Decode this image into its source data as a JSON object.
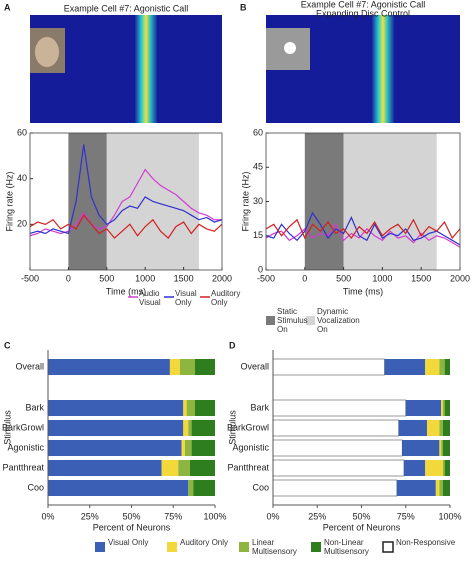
{
  "chart_data": [
    {
      "type": "line",
      "panel_label": "A",
      "title": "Example Cell #7: Agonistic Call",
      "xlabel": "Time (ms)",
      "ylabel": "Firing rate (Hz)",
      "x": [
        -500,
        -400,
        -300,
        -200,
        -100,
        0,
        100,
        200,
        300,
        400,
        500,
        600,
        700,
        800,
        900,
        1000,
        1100,
        1200,
        1300,
        1400,
        1500,
        1600,
        1700,
        1800,
        1900,
        2000
      ],
      "xlim": [
        -500,
        2000
      ],
      "xticks": [
        -500,
        0,
        500,
        1000,
        1500,
        2000
      ],
      "ylim": [
        0,
        60
      ],
      "yticks": [
        20,
        40,
        60
      ],
      "shaded_regions": [
        {
          "x": [
            0,
            500
          ],
          "color": "#7a7a7a"
        },
        {
          "x": [
            500,
            1700
          ],
          "color": "#d4d4d4"
        }
      ],
      "series": [
        {
          "name": "Audio Visual",
          "color": "#d43bd4",
          "values": [
            15,
            16,
            18,
            17,
            16,
            17,
            20,
            25,
            20,
            18,
            19,
            24,
            30,
            32,
            38,
            44,
            40,
            37,
            35,
            33,
            30,
            27,
            25,
            24,
            22,
            22
          ]
        },
        {
          "name": "Visual Only",
          "color": "#3030d0",
          "values": [
            16,
            17,
            16,
            18,
            17,
            16,
            30,
            55,
            32,
            24,
            20,
            22,
            26,
            28,
            27,
            32,
            30,
            29,
            28,
            27,
            26,
            24,
            22,
            23,
            21,
            22
          ]
        },
        {
          "name": "Auditory Only",
          "color": "#d42020",
          "values": [
            19,
            21,
            20,
            22,
            18,
            20,
            18,
            24,
            20,
            16,
            18,
            14,
            17,
            20,
            15,
            19,
            22,
            17,
            14,
            19,
            21,
            16,
            20,
            18,
            17,
            20
          ]
        }
      ]
    },
    {
      "type": "line",
      "panel_label": "B",
      "title": "Example Cell #7: Agonistic Call",
      "subtitle": "Expanding Disc Control",
      "xlabel": "Time (ms)",
      "ylabel": "Firing rate (Hz)",
      "x": [
        -500,
        -400,
        -300,
        -200,
        -100,
        0,
        100,
        200,
        300,
        400,
        500,
        600,
        700,
        800,
        900,
        1000,
        1100,
        1200,
        1300,
        1400,
        1500,
        1600,
        1700,
        1800,
        1900,
        2000
      ],
      "xlim": [
        -500,
        2000
      ],
      "xticks": [
        -500,
        0,
        500,
        1000,
        1500,
        2000
      ],
      "ylim": [
        0,
        60
      ],
      "yticks": [
        0,
        15,
        30,
        45,
        60
      ],
      "shaded_regions": [
        {
          "x": [
            0,
            500
          ],
          "color": "#7a7a7a",
          "name": "Static Stimulus On"
        },
        {
          "x": [
            500,
            1700
          ],
          "color": "#d4d4d4",
          "name": "Dynamic Vocalization On"
        }
      ],
      "series": [
        {
          "color": "#d43bd4",
          "values": [
            14,
            16,
            17,
            13,
            15,
            18,
            14,
            16,
            15,
            20,
            13,
            16,
            14,
            18,
            15,
            13,
            17,
            14,
            15,
            12,
            16,
            13,
            15,
            14,
            12,
            10
          ]
        },
        {
          "color": "#3030d0",
          "values": [
            15,
            14,
            20,
            16,
            13,
            17,
            25,
            20,
            14,
            18,
            16,
            23,
            15,
            13,
            20,
            14,
            16,
            15,
            18,
            13,
            14,
            16,
            17,
            15,
            13,
            11
          ]
        },
        {
          "color": "#d42020",
          "values": [
            18,
            20,
            15,
            19,
            22,
            14,
            20,
            17,
            21,
            16,
            18,
            14,
            19,
            16,
            21,
            15,
            18,
            20,
            16,
            22,
            15,
            19,
            17,
            21,
            14,
            18
          ]
        }
      ]
    },
    {
      "type": "bar",
      "panel_label": "C",
      "orientation": "horizontal",
      "stacked": true,
      "xlabel": "Percent of Neurons",
      "ylabel": "Stimulus",
      "categories": [
        "Overall",
        "Bark",
        "BarkGrowl",
        "Agonistic",
        "Pantthreat",
        "Coo"
      ],
      "xlim": [
        0,
        100
      ],
      "xticks": [
        {
          "value": 0,
          "label": "0%"
        },
        {
          "value": 25,
          "label": "25%"
        },
        {
          "value": 50,
          "label": "50%"
        },
        {
          "value": 75,
          "label": "75%"
        },
        {
          "value": 100,
          "label": "100%"
        }
      ],
      "series": [
        {
          "name": "Visual Only",
          "color": "#3a5fb5",
          "values": [
            73,
            81,
            81,
            80,
            68,
            84
          ]
        },
        {
          "name": "Auditory Only",
          "color": "#f2d83a",
          "values": [
            6,
            2,
            3,
            2,
            10,
            0
          ]
        },
        {
          "name": "Linear Multisensory",
          "color": "#8db53f",
          "values": [
            9,
            5,
            2,
            4,
            7,
            3
          ]
        },
        {
          "name": "Non-Linear Multisensory",
          "color": "#2e7d1f",
          "values": [
            12,
            12,
            14,
            14,
            15,
            13
          ]
        }
      ]
    },
    {
      "type": "bar",
      "panel_label": "D",
      "orientation": "horizontal",
      "stacked": true,
      "xlabel": "Percent of Neurons",
      "ylabel": "Stimulus",
      "categories": [
        "Overall",
        "Bark",
        "BarkGrowl",
        "Agonistic",
        "Pantthreat",
        "Coo"
      ],
      "xlim": [
        0,
        100
      ],
      "xticks": [
        {
          "value": 0,
          "label": "0%"
        },
        {
          "value": 25,
          "label": "25%"
        },
        {
          "value": 50,
          "label": "50%"
        },
        {
          "value": 75,
          "label": "75%"
        },
        {
          "value": 100,
          "label": "100%"
        }
      ],
      "series": [
        {
          "name": "Non-Responsive",
          "color": "#ffffff",
          "values": [
            63,
            75,
            71,
            73,
            74,
            70
          ]
        },
        {
          "color": "#3a5fb5",
          "values": [
            23,
            20,
            16,
            21,
            12,
            22
          ]
        },
        {
          "color": "#f2d83a",
          "values": [
            8,
            1,
            7,
            1,
            10,
            2
          ]
        },
        {
          "color": "#8db53f",
          "values": [
            3,
            1,
            2,
            1,
            1,
            2
          ]
        },
        {
          "color": "#2e7d1f",
          "values": [
            3,
            3,
            4,
            4,
            3,
            4
          ]
        }
      ]
    }
  ]
}
